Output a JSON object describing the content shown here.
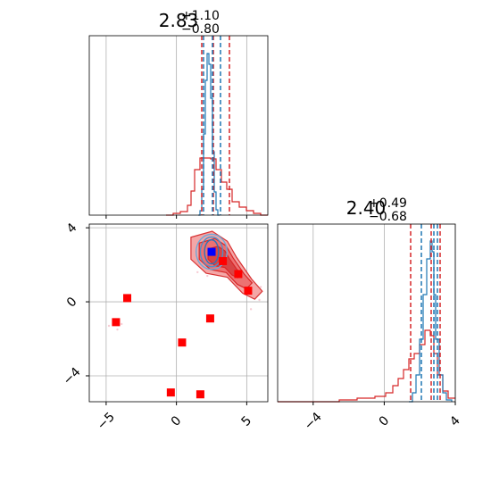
{
  "chart_data": {
    "type": "scatter",
    "description_free": true,
    "titles": {
      "p1": {
        "value": "2.83",
        "upper": "+1.10",
        "lower": "−0.80"
      },
      "p2": {
        "value": "2.40",
        "upper": "+0.49",
        "lower": "−0.68"
      }
    },
    "x_ticks": [
      {
        "value": -5,
        "label": "−5"
      },
      {
        "value": 0,
        "label": "0"
      },
      {
        "value": 5,
        "label": "5"
      }
    ],
    "y_ticks": [
      {
        "value": 4,
        "label": "4"
      },
      {
        "value": 0,
        "label": "0"
      },
      {
        "value": -4,
        "label": "−4"
      }
    ],
    "p2_ticks": [
      {
        "value": -4,
        "label": "−4"
      },
      {
        "value": 0,
        "label": "0"
      },
      {
        "value": 4,
        "label": "4"
      }
    ],
    "xlim": [
      -6.2,
      6.5
    ],
    "ylim": [
      -5.4,
      4.2
    ],
    "p2lim": [
      -6.0,
      4.0
    ],
    "grid": true,
    "colors": {
      "red": "#d62728",
      "blue": "#1f77b4",
      "square_red": "#ff0000",
      "square_blue": "#0000ff",
      "fill_red": "#f08080"
    },
    "quantiles": {
      "red_p1": [
        1.95,
        2.83,
        3.93
      ],
      "blue_p1": [
        2.1,
        2.55,
        2.95
      ],
      "red_p2": [
        1.72,
        2.4,
        2.89
      ],
      "blue_p2": [
        2.2,
        2.75,
        3.1
      ]
    },
    "points_red": [
      {
        "x": -3.5,
        "y": 0.2
      },
      {
        "x": -4.3,
        "y": -1.1
      },
      {
        "x": 2.4,
        "y": -0.9
      },
      {
        "x": 0.4,
        "y": -2.2
      },
      {
        "x": -0.4,
        "y": -4.9
      },
      {
        "x": 1.7,
        "y": -5.0
      },
      {
        "x": 3.3,
        "y": 2.2
      },
      {
        "x": 4.4,
        "y": 1.5
      },
      {
        "x": 5.1,
        "y": 0.6
      }
    ],
    "points_blue": [
      {
        "x": 2.5,
        "y": 2.7
      }
    ]
  }
}
